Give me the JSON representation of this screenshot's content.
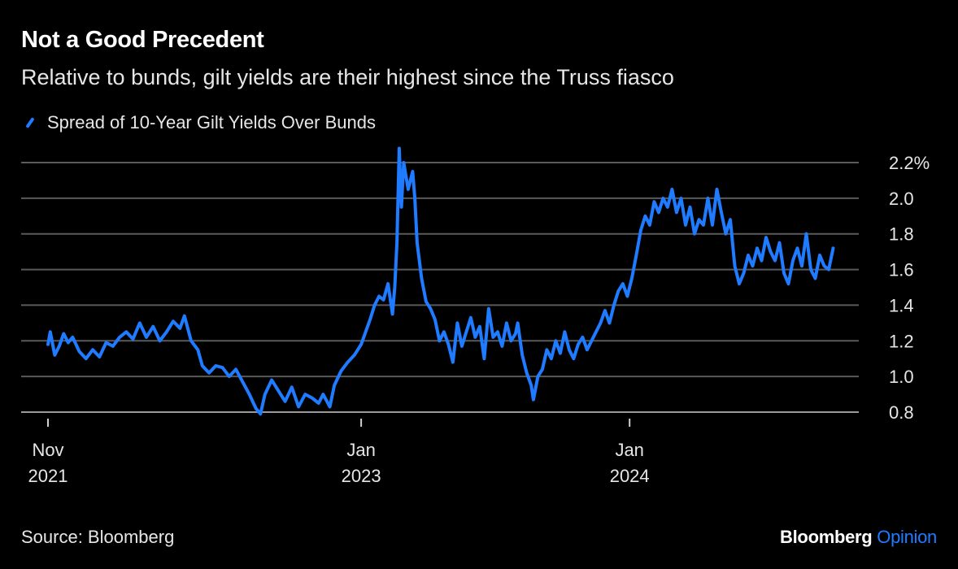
{
  "header": {
    "title": "Not a Good Precedent",
    "subtitle": "Relative to bunds, gilt yields are their highest since the Truss fiasco"
  },
  "legend": {
    "label": "Spread of 10-Year Gilt Yields Over Bunds",
    "color": "#1f7bff"
  },
  "footer": {
    "source": "Source: Bloomberg",
    "brand_main": "Bloomberg",
    "brand_sub": "Opinion"
  },
  "colors": {
    "line": "#1f7bff",
    "grid": "#5a5a5a",
    "text": "#e6e6e6",
    "background": "#000000"
  },
  "chart_data": {
    "type": "line",
    "title": "Not a Good Precedent",
    "subtitle": "Relative to bunds, gilt yields are their highest since the Truss fiasco",
    "xlabel": "",
    "ylabel": "",
    "ylim": [
      0.8,
      2.2
    ],
    "xlim": [
      0,
      35.3
    ],
    "x_unit": "months since Nov 2021",
    "y_ticks": [
      {
        "value": 0.8,
        "label": "0.8"
      },
      {
        "value": 1.0,
        "label": "1.0"
      },
      {
        "value": 1.2,
        "label": "1.2"
      },
      {
        "value": 1.4,
        "label": "1.4"
      },
      {
        "value": 1.6,
        "label": "1.6"
      },
      {
        "value": 1.8,
        "label": "1.8"
      },
      {
        "value": 2.0,
        "label": "2.0"
      },
      {
        "value": 2.2,
        "label": "2.2%"
      }
    ],
    "x_ticks": [
      {
        "value": 0,
        "line1": "Nov",
        "line2": "2021"
      },
      {
        "value": 14,
        "line1": "Jan",
        "line2": "2023"
      },
      {
        "value": 26,
        "line1": "Jan",
        "line2": "2024"
      }
    ],
    "series": [
      {
        "name": "Spread of 10-Year Gilt Yields Over Bunds",
        "points": [
          [
            0.0,
            1.18
          ],
          [
            0.1,
            1.25
          ],
          [
            0.3,
            1.12
          ],
          [
            0.5,
            1.17
          ],
          [
            0.7,
            1.24
          ],
          [
            0.9,
            1.19
          ],
          [
            1.1,
            1.22
          ],
          [
            1.4,
            1.14
          ],
          [
            1.7,
            1.1
          ],
          [
            2.0,
            1.15
          ],
          [
            2.3,
            1.11
          ],
          [
            2.6,
            1.19
          ],
          [
            2.9,
            1.17
          ],
          [
            3.2,
            1.22
          ],
          [
            3.5,
            1.25
          ],
          [
            3.8,
            1.21
          ],
          [
            4.1,
            1.3
          ],
          [
            4.4,
            1.22
          ],
          [
            4.7,
            1.28
          ],
          [
            5.0,
            1.2
          ],
          [
            5.3,
            1.25
          ],
          [
            5.6,
            1.31
          ],
          [
            5.9,
            1.27
          ],
          [
            6.1,
            1.34
          ],
          [
            6.4,
            1.2
          ],
          [
            6.7,
            1.15
          ],
          [
            6.9,
            1.06
          ],
          [
            7.2,
            1.02
          ],
          [
            7.5,
            1.06
          ],
          [
            7.8,
            1.05
          ],
          [
            8.1,
            1.0
          ],
          [
            8.4,
            1.04
          ],
          [
            8.7,
            0.97
          ],
          [
            9.0,
            0.9
          ],
          [
            9.3,
            0.82
          ],
          [
            9.5,
            0.79
          ],
          [
            9.7,
            0.9
          ],
          [
            10.0,
            0.98
          ],
          [
            10.3,
            0.92
          ],
          [
            10.6,
            0.86
          ],
          [
            10.9,
            0.94
          ],
          [
            11.2,
            0.83
          ],
          [
            11.5,
            0.9
          ],
          [
            11.8,
            0.88
          ],
          [
            12.1,
            0.85
          ],
          [
            12.3,
            0.9
          ],
          [
            12.6,
            0.83
          ],
          [
            12.8,
            0.95
          ],
          [
            13.1,
            1.03
          ],
          [
            13.4,
            1.08
          ],
          [
            13.7,
            1.12
          ],
          [
            14.0,
            1.18
          ],
          [
            14.2,
            1.25
          ],
          [
            14.4,
            1.32
          ],
          [
            14.6,
            1.4
          ],
          [
            14.8,
            1.45
          ],
          [
            15.0,
            1.43
          ],
          [
            15.2,
            1.52
          ],
          [
            15.4,
            1.35
          ],
          [
            15.5,
            1.5
          ],
          [
            15.6,
            1.75
          ],
          [
            15.7,
            2.28
          ],
          [
            15.8,
            1.95
          ],
          [
            15.9,
            2.2
          ],
          [
            16.1,
            2.05
          ],
          [
            16.3,
            2.15
          ],
          [
            16.4,
            2.0
          ],
          [
            16.5,
            1.75
          ],
          [
            16.7,
            1.55
          ],
          [
            16.9,
            1.42
          ],
          [
            17.1,
            1.38
          ],
          [
            17.3,
            1.32
          ],
          [
            17.5,
            1.2
          ],
          [
            17.7,
            1.25
          ],
          [
            17.9,
            1.18
          ],
          [
            18.1,
            1.08
          ],
          [
            18.3,
            1.3
          ],
          [
            18.5,
            1.17
          ],
          [
            18.7,
            1.25
          ],
          [
            18.9,
            1.33
          ],
          [
            19.1,
            1.22
          ],
          [
            19.3,
            1.28
          ],
          [
            19.5,
            1.1
          ],
          [
            19.7,
            1.38
          ],
          [
            19.9,
            1.22
          ],
          [
            20.1,
            1.25
          ],
          [
            20.3,
            1.17
          ],
          [
            20.5,
            1.3
          ],
          [
            20.7,
            1.2
          ],
          [
            20.9,
            1.24
          ],
          [
            21.0,
            1.3
          ],
          [
            21.2,
            1.12
          ],
          [
            21.4,
            1.02
          ],
          [
            21.6,
            0.95
          ],
          [
            21.7,
            0.87
          ],
          [
            21.9,
            1.0
          ],
          [
            22.1,
            1.04
          ],
          [
            22.3,
            1.15
          ],
          [
            22.5,
            1.1
          ],
          [
            22.7,
            1.2
          ],
          [
            22.9,
            1.13
          ],
          [
            23.1,
            1.25
          ],
          [
            23.3,
            1.15
          ],
          [
            23.5,
            1.1
          ],
          [
            23.7,
            1.18
          ],
          [
            23.9,
            1.22
          ],
          [
            24.1,
            1.15
          ],
          [
            24.3,
            1.2
          ],
          [
            24.5,
            1.25
          ],
          [
            24.7,
            1.3
          ],
          [
            24.9,
            1.37
          ],
          [
            25.1,
            1.3
          ],
          [
            25.3,
            1.4
          ],
          [
            25.5,
            1.48
          ],
          [
            25.7,
            1.52
          ],
          [
            25.9,
            1.45
          ],
          [
            26.1,
            1.55
          ],
          [
            26.3,
            1.68
          ],
          [
            26.5,
            1.82
          ],
          [
            26.7,
            1.9
          ],
          [
            26.9,
            1.85
          ],
          [
            27.1,
            1.98
          ],
          [
            27.3,
            1.92
          ],
          [
            27.5,
            2.0
          ],
          [
            27.7,
            1.95
          ],
          [
            27.9,
            2.05
          ],
          [
            28.1,
            1.92
          ],
          [
            28.3,
            2.0
          ],
          [
            28.5,
            1.85
          ],
          [
            28.7,
            1.95
          ],
          [
            28.9,
            1.8
          ],
          [
            29.1,
            1.88
          ],
          [
            29.3,
            1.85
          ],
          [
            29.5,
            2.0
          ],
          [
            29.7,
            1.85
          ],
          [
            29.9,
            2.05
          ],
          [
            30.1,
            1.92
          ],
          [
            30.3,
            1.8
          ],
          [
            30.5,
            1.88
          ],
          [
            30.7,
            1.62
          ],
          [
            30.9,
            1.52
          ],
          [
            31.1,
            1.58
          ],
          [
            31.3,
            1.68
          ],
          [
            31.5,
            1.62
          ],
          [
            31.7,
            1.72
          ],
          [
            31.9,
            1.65
          ],
          [
            32.1,
            1.78
          ],
          [
            32.3,
            1.7
          ],
          [
            32.5,
            1.65
          ],
          [
            32.7,
            1.75
          ],
          [
            32.9,
            1.58
          ],
          [
            33.1,
            1.52
          ],
          [
            33.3,
            1.65
          ],
          [
            33.5,
            1.72
          ],
          [
            33.7,
            1.62
          ],
          [
            33.9,
            1.8
          ],
          [
            34.1,
            1.6
          ],
          [
            34.3,
            1.55
          ],
          [
            34.5,
            1.68
          ],
          [
            34.7,
            1.62
          ],
          [
            34.9,
            1.6
          ],
          [
            35.1,
            1.72
          ]
        ]
      }
    ]
  }
}
